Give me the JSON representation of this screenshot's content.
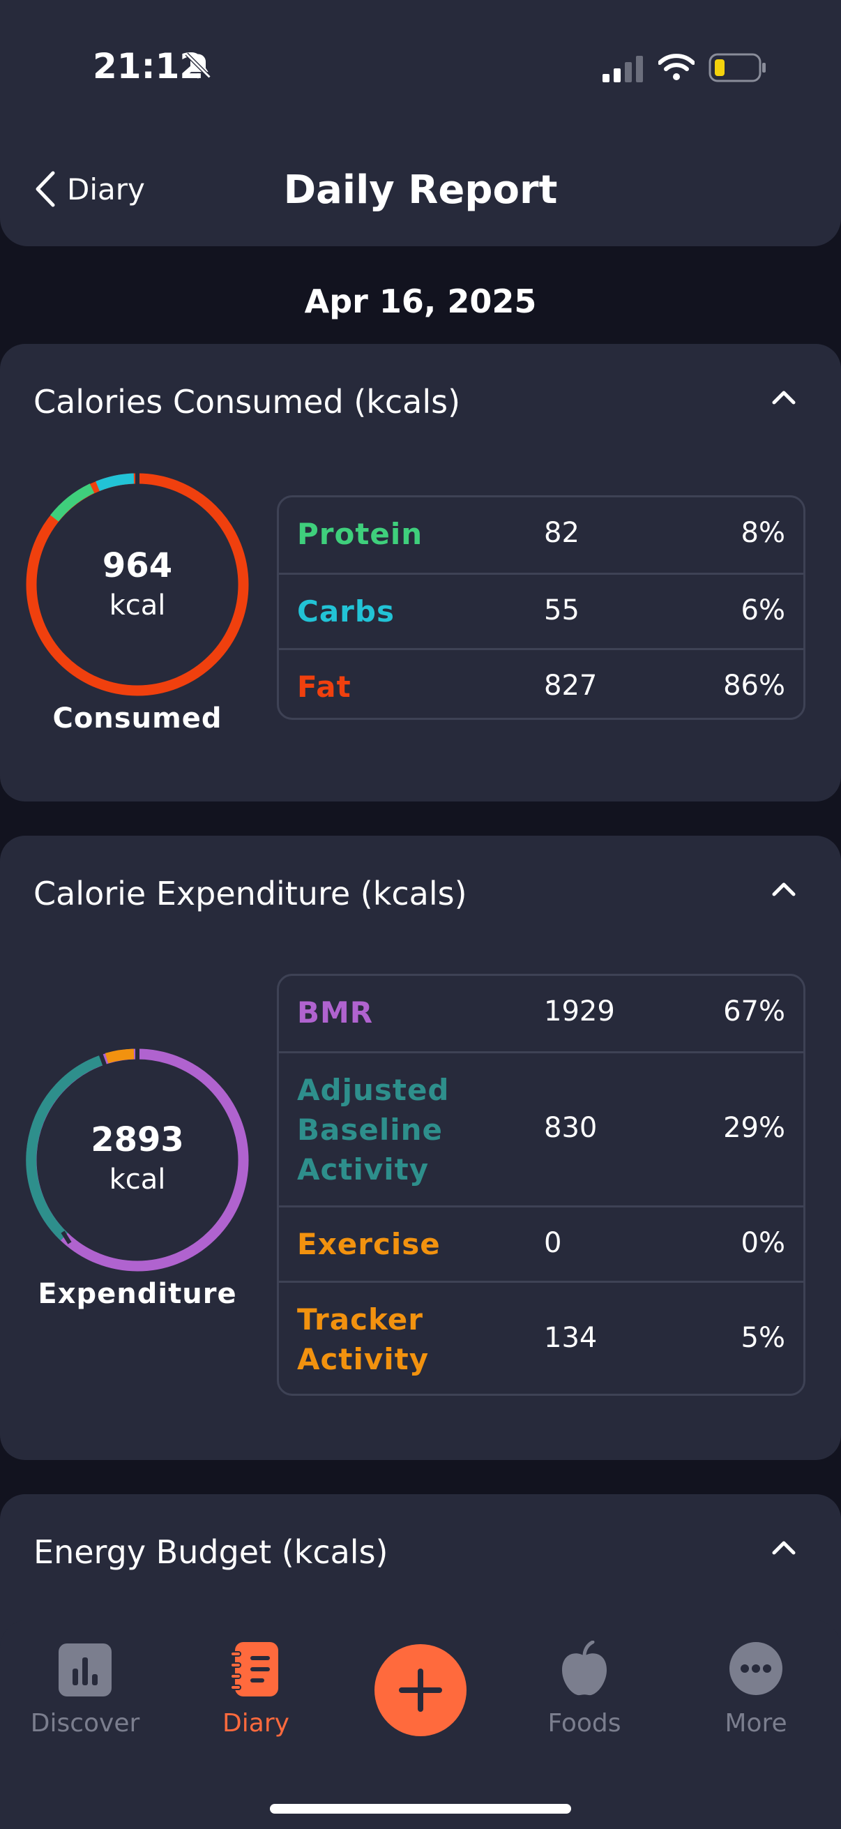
{
  "status": {
    "time": "21:12"
  },
  "header": {
    "back_label": "Diary",
    "title": "Daily Report"
  },
  "date": "Apr 16, 2025",
  "consumed": {
    "title": "Calories Consumed (kcals)",
    "ring_value": "964",
    "ring_unit": "kcal",
    "ring_label": "Consumed",
    "rows": [
      {
        "label": "Protein",
        "value": "82",
        "pct": "8%",
        "color": "#3fcf7c"
      },
      {
        "label": "Carbs",
        "value": "55",
        "pct": "6%",
        "color": "#22c3d6"
      },
      {
        "label": "Fat",
        "value": "827",
        "pct": "86%",
        "color": "#f0400e"
      }
    ]
  },
  "expenditure": {
    "title": "Calorie Expenditure (kcals)",
    "ring_value": "2893",
    "ring_unit": "kcal",
    "ring_label": "Expenditure",
    "rows": [
      {
        "label": "BMR",
        "value": "1929",
        "pct": "67%",
        "color": "#b063cf"
      },
      {
        "label": "Adjusted Baseline Activity",
        "label_lines": [
          "Adjusted",
          "Baseline",
          "Activity"
        ],
        "value": "830",
        "pct": "29%",
        "color": "#2e8f8c"
      },
      {
        "label": "Exercise",
        "value": "0",
        "pct": "0%",
        "color": "#f2920f"
      },
      {
        "label": "Tracker Activity",
        "label_lines": [
          "Tracker",
          "Activity"
        ],
        "value": "134",
        "pct": "5%",
        "color": "#f2920f"
      }
    ]
  },
  "budget": {
    "title": "Energy Budget (kcals)"
  },
  "nav": {
    "items": [
      {
        "label": "Discover",
        "icon": "bar-chart-icon"
      },
      {
        "label": "Diary",
        "icon": "notebook-icon",
        "active": true
      },
      {
        "label": "Foods",
        "icon": "apple-icon"
      },
      {
        "label": "More",
        "icon": "more-dots-icon"
      }
    ]
  },
  "colors": {
    "accent": "#ff6a3d",
    "card": "#272a3b",
    "background": "#12131f"
  }
}
